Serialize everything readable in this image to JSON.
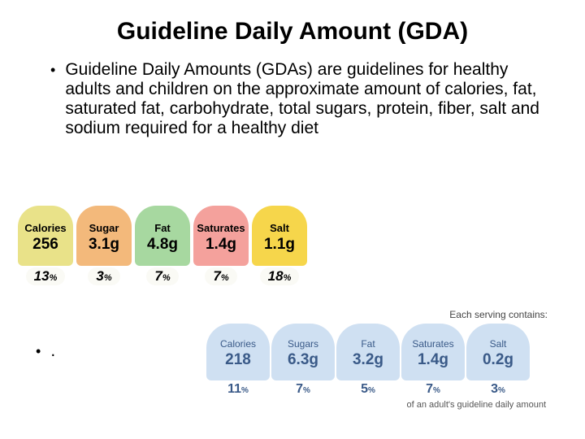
{
  "title": "Guideline Daily Amount (GDA)",
  "bullet1": "Guideline Daily Amounts (GDAs) are guidelines for healthy adults and children on the approximate amount of calories, fat, saturated fat, carbohydrate, total sugars, protein, fiber, salt and sodium required for a healthy diet",
  "bullet2": ".",
  "set1": {
    "items": [
      {
        "label": "Calories",
        "value": "256",
        "pct": "13",
        "color": "#e9e289"
      },
      {
        "label": "Sugar",
        "value": "3.1g",
        "pct": "3",
        "color": "#f3b97b"
      },
      {
        "label": "Fat",
        "value": "4.8g",
        "pct": "7",
        "color": "#a7d8a0"
      },
      {
        "label": "Saturates",
        "value": "1.4g",
        "pct": "7",
        "color": "#f4a19c"
      },
      {
        "label": "Salt",
        "value": "1.1g",
        "pct": "18",
        "color": "#f6d64b"
      }
    ]
  },
  "set2": {
    "heading": "Each serving contains:",
    "items": [
      {
        "label": "Calories",
        "value": "218",
        "pct": "11"
      },
      {
        "label": "Sugars",
        "value": "6.3g",
        "pct": "7"
      },
      {
        "label": "Fat",
        "value": "3.2g",
        "pct": "5"
      },
      {
        "label": "Saturates",
        "value": "1.4g",
        "pct": "7"
      },
      {
        "label": "Salt",
        "value": "0.2g",
        "pct": "3"
      }
    ],
    "footnote": "of an adult's guideline daily amount",
    "pill_color": "#cfe0f2",
    "text_color": "#3a5a88"
  }
}
